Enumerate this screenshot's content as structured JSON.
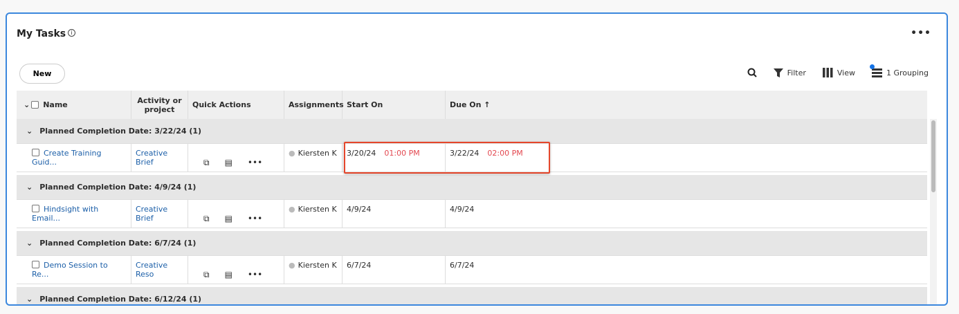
{
  "title": "My Tasks",
  "new_label": "New",
  "toolbar": {
    "filter": "Filter",
    "view": "View",
    "grouping": "1 Grouping"
  },
  "columns": [
    "Name",
    "Activity or project",
    "Quick Actions",
    "Assignments",
    "Start On",
    "Due On ↑"
  ],
  "groups": [
    {
      "label": "Planned Completion Date: 3/22/24 (1)",
      "task": {
        "name": "Create Training Guid...",
        "project": "Creative Brief",
        "assignee": "Kiersten K",
        "start": "3/20/24",
        "start_time": "01:00 PM",
        "due": "3/22/24",
        "due_time": "02:00 PM"
      }
    },
    {
      "label": "Planned Completion Date: 4/9/24 (1)",
      "task": {
        "name": "Hindsight with Email...",
        "project": "Creative Brief",
        "assignee": "Kiersten K",
        "start": "4/9/24",
        "start_time": "",
        "due": "4/9/24",
        "due_time": ""
      }
    },
    {
      "label": "Planned Completion Date: 6/7/24 (1)",
      "task": {
        "name": "Demo Session to Re...",
        "project": "Creative Reso",
        "assignee": "Kiersten K",
        "start": "6/7/24",
        "start_time": "",
        "due": "6/7/24",
        "due_time": ""
      }
    },
    {
      "label": "Planned Completion Date: 6/12/24 (1)"
    }
  ],
  "colors": {
    "accent": "#1473e6",
    "highlight": "#e5462b",
    "time": "#e34850"
  }
}
